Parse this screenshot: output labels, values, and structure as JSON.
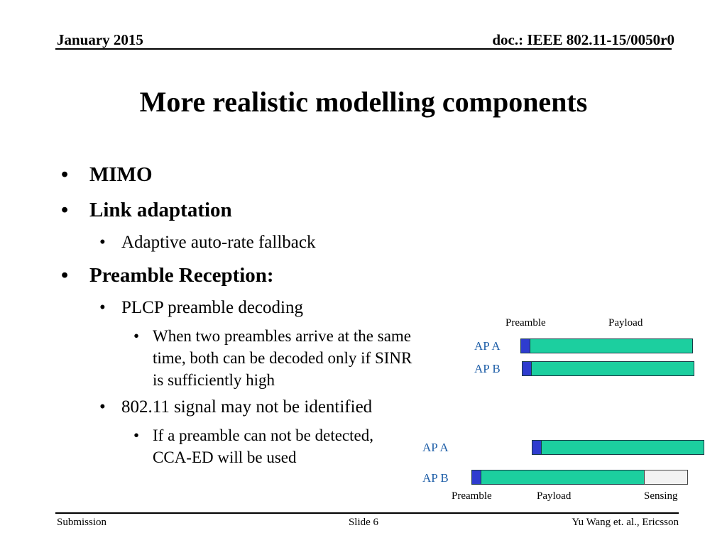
{
  "header": {
    "date": "January 2015",
    "doc": "doc.: IEEE 802.11-15/0050r0"
  },
  "title": "More realistic modelling components",
  "bullets": {
    "mimo": "MIMO",
    "link_adaptation": "Link adaptation",
    "aarf": "Adaptive auto-rate fallback",
    "preamble_reception": "Preamble Reception:",
    "plcp": "PLCP preamble decoding",
    "two_preambles": [
      "When two preambles arrive at the same",
      "time, both can be decoded only if SINR",
      "is sufficiently high"
    ],
    "signal_not_identified": "802.11 signal may not be identified",
    "cca_ed": [
      "If a preamble can not be detected,",
      "CCA-ED will be used"
    ]
  },
  "diagram_top": {
    "preamble_label": "Preamble",
    "payload_label": "Payload",
    "ap_a": "AP A",
    "ap_b": "AP B"
  },
  "diagram_bottom": {
    "ap_a": "AP A",
    "ap_b": "AP B",
    "preamble_label": "Preamble",
    "payload_label": "Payload",
    "sensing_label": "Sensing"
  },
  "colors": {
    "preamble": "#2e3ccf",
    "payload": "#1ccf9f",
    "sensing": "#f2f2f2",
    "ap_label": "#1f5fa8"
  },
  "footer": {
    "left": "Submission",
    "center": "Slide 6",
    "right": "Yu Wang et. al., Ericsson"
  }
}
